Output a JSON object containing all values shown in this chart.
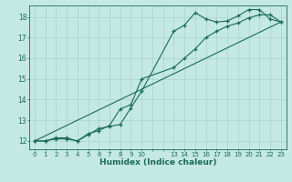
{
  "xlabel": "Humidex (Indice chaleur)",
  "bg_color": "#c4e8e4",
  "line_color": "#1a6b5a",
  "grid_color": "#a8d4cc",
  "xlim": [
    -0.5,
    23.5
  ],
  "ylim": [
    11.6,
    18.55
  ],
  "xtick_vals": [
    0,
    1,
    2,
    3,
    4,
    5,
    6,
    7,
    8,
    9,
    10,
    13,
    14,
    15,
    16,
    17,
    18,
    19,
    20,
    21,
    22,
    23
  ],
  "xtick_labels": [
    "0",
    "1",
    "2",
    "3",
    "4",
    "5",
    "6",
    "7",
    "8",
    "9",
    "10",
    "13",
    "14",
    "15",
    "16",
    "17",
    "18",
    "19",
    "20",
    "21",
    "22",
    "23"
  ],
  "yticks": [
    12,
    13,
    14,
    15,
    16,
    17,
    18
  ],
  "line1_x": [
    0,
    1,
    2,
    3,
    4,
    5,
    6,
    7,
    8,
    9,
    10,
    13,
    14,
    15,
    16,
    17,
    18,
    19,
    20,
    21,
    22,
    23
  ],
  "line1_y": [
    12.0,
    12.0,
    12.1,
    12.1,
    12.0,
    12.3,
    12.6,
    12.7,
    12.8,
    13.6,
    14.4,
    17.3,
    17.6,
    18.2,
    17.9,
    17.75,
    17.8,
    18.05,
    18.35,
    18.35,
    17.9,
    17.75
  ],
  "line2_x": [
    0,
    1,
    2,
    3,
    4,
    5,
    6,
    7,
    8,
    9,
    10,
    13,
    14,
    15,
    16,
    17,
    18,
    19,
    20,
    21,
    22,
    23
  ],
  "line2_y": [
    12.0,
    12.0,
    12.15,
    12.15,
    12.0,
    12.35,
    12.5,
    12.75,
    13.55,
    13.75,
    15.0,
    15.55,
    16.0,
    16.45,
    17.0,
    17.3,
    17.55,
    17.7,
    17.95,
    18.1,
    18.1,
    17.75
  ],
  "line3_x": [
    0,
    23
  ],
  "line3_y": [
    12.0,
    17.75
  ]
}
